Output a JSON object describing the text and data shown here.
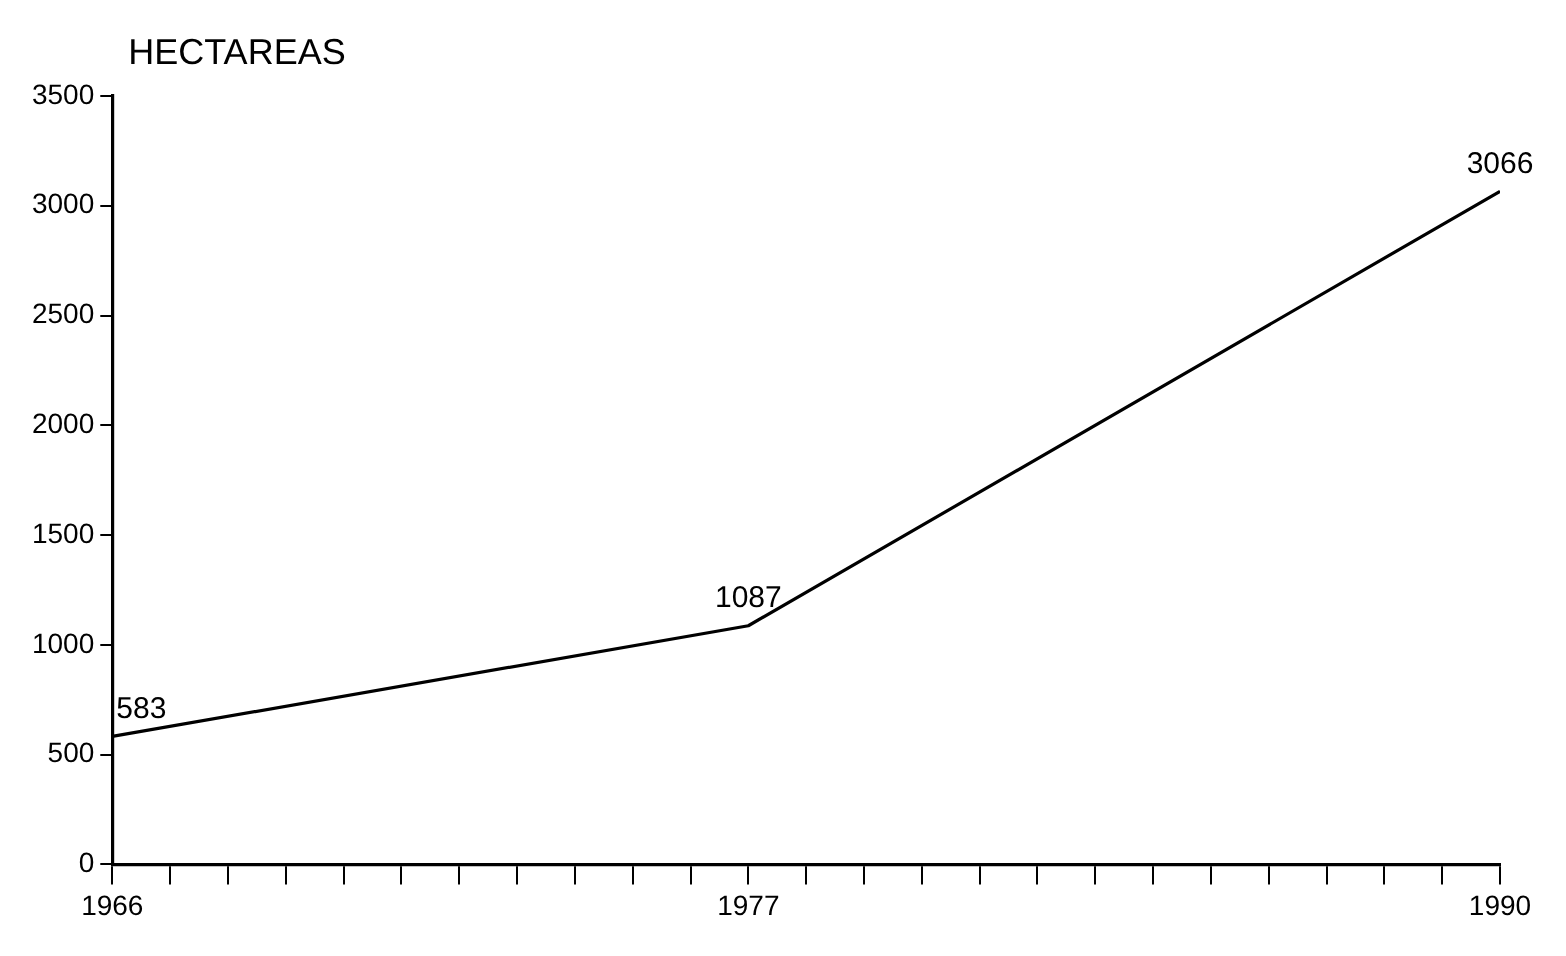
{
  "chart_data": {
    "type": "line",
    "ylabel": "HECTAREAS",
    "x": [
      1966,
      1977,
      1990
    ],
    "series": [
      {
        "color": "#000000",
        "values": [
          583,
          1087,
          3066
        ]
      }
    ],
    "data_labels": true,
    "xlim": [
      1966,
      1990
    ],
    "xticks": [
      {
        "value": 1966,
        "label": "1966"
      },
      {
        "value": 1967,
        "label": null
      },
      {
        "value": 1968,
        "label": null
      },
      {
        "value": 1969,
        "label": null
      },
      {
        "value": 1970,
        "label": null
      },
      {
        "value": 1971,
        "label": null
      },
      {
        "value": 1972,
        "label": null
      },
      {
        "value": 1973,
        "label": null
      },
      {
        "value": 1974,
        "label": null
      },
      {
        "value": 1975,
        "label": null
      },
      {
        "value": 1976,
        "label": null
      },
      {
        "value": 1977,
        "label": "1977"
      },
      {
        "value": 1978,
        "label": null
      },
      {
        "value": 1979,
        "label": null
      },
      {
        "value": 1980,
        "label": null
      },
      {
        "value": 1981,
        "label": null
      },
      {
        "value": 1982,
        "label": null
      },
      {
        "value": 1983,
        "label": null
      },
      {
        "value": 1984,
        "label": null
      },
      {
        "value": 1985,
        "label": null
      },
      {
        "value": 1986,
        "label": null
      },
      {
        "value": 1987,
        "label": null
      },
      {
        "value": 1988,
        "label": null
      },
      {
        "value": 1989,
        "label": null
      },
      {
        "value": 1990,
        "label": "1990"
      }
    ],
    "ylim": [
      0,
      3500
    ],
    "yticks": [
      0,
      500,
      1000,
      1500,
      2000,
      2500,
      3000,
      3500
    ],
    "grid": false,
    "legend": false,
    "marker": "none",
    "line_style": "solid"
  }
}
